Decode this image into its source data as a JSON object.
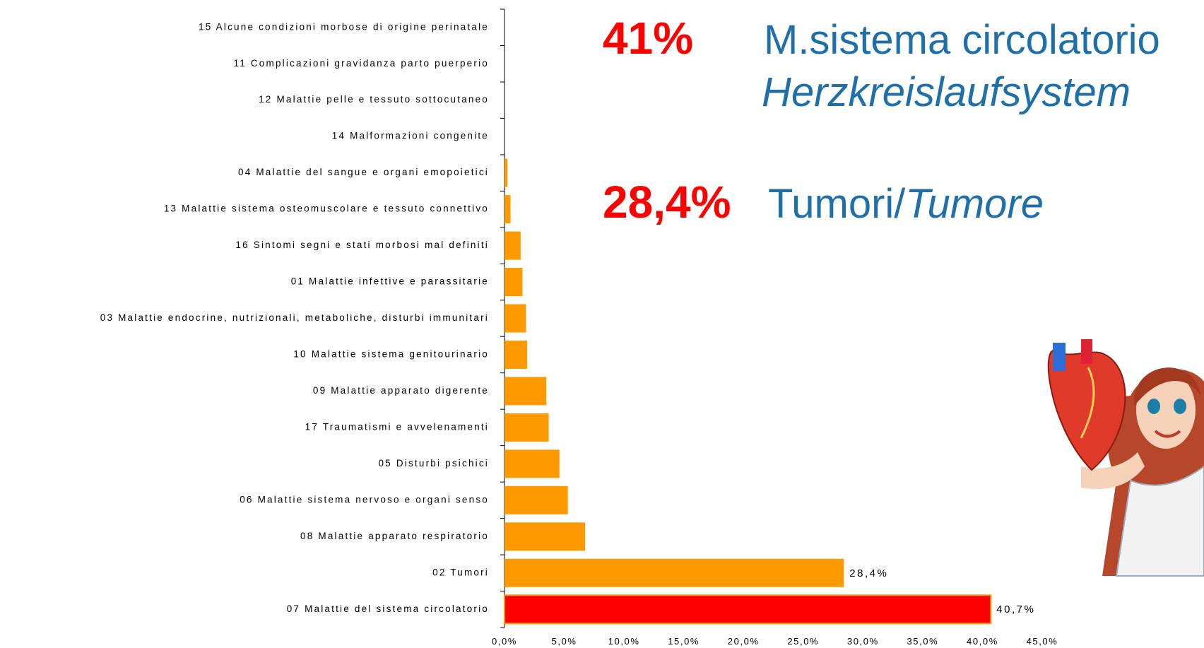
{
  "chart_data": {
    "type": "barh",
    "categories": [
      "15 Alcune condizioni morbose di origine perinatale",
      "11 Complicazioni gravidanza parto puerperio",
      "12 Malattie pelle e tessuto sottocutaneo",
      "14 Malformazioni congenite",
      "04 Malattie del sangue e organi emopoietici",
      "13 Malattie sistema osteomuscolare e tessuto connettivo",
      "16 Sintomi segni e stati morbosi mal definiti",
      "01 Malattie infettive e parassitarie",
      "03 Malattie endocrine, nutrizionali, metaboliche, disturbi immunitari",
      "10 Malattie sistema genitourinario",
      "09 Malattie apparato digerente",
      "17 Traumatismi e avvelenamenti",
      "05 Disturbi psichici",
      "06 Malattie sistema nervoso e organi senso",
      "08 Malattie apparato respiratorio",
      "02 Tumori",
      "07 Malattie del sistema circolatorio"
    ],
    "values": [
      0,
      0,
      0,
      0,
      0.25,
      0.5,
      1.35,
      1.5,
      1.8,
      1.9,
      3.5,
      3.7,
      4.6,
      5.3,
      6.75,
      28.4,
      40.7
    ],
    "value_labels": [
      null,
      null,
      null,
      null,
      null,
      null,
      null,
      null,
      null,
      null,
      null,
      null,
      null,
      null,
      null,
      "28,4%",
      "40,7%"
    ],
    "colors": [
      "#FF9900",
      "#FF9900",
      "#FF9900",
      "#FF9900",
      "#FF9900",
      "#FF9900",
      "#FF9900",
      "#FF9900",
      "#FF9900",
      "#FF9900",
      "#FF9900",
      "#FF9900",
      "#FF9900",
      "#FF9900",
      "#FF9900",
      "#FF9900",
      "#FF0000"
    ],
    "xlim": [
      0,
      45
    ],
    "xticks": [
      {
        "value": 0,
        "label": "0,0%"
      },
      {
        "value": 5,
        "label": "5,0%"
      },
      {
        "value": 10,
        "label": "10,0%"
      },
      {
        "value": 15,
        "label": "15,0%"
      },
      {
        "value": 20,
        "label": "20,0%"
      },
      {
        "value": 25,
        "label": "25,0%"
      },
      {
        "value": 30,
        "label": "30,0%"
      },
      {
        "value": 35,
        "label": "35,0%"
      },
      {
        "value": 40,
        "label": "40,0%"
      },
      {
        "value": 45,
        "label": "45,0%"
      }
    ],
    "grid": false,
    "annotations": {
      "big_1": "41%",
      "text_1": "M.sistema circolatorio",
      "text_1_de": "Herzkreislaufsystem",
      "big_2": "28,4%",
      "text_2": "Tumori/",
      "text_2_de": "Tumore"
    }
  }
}
